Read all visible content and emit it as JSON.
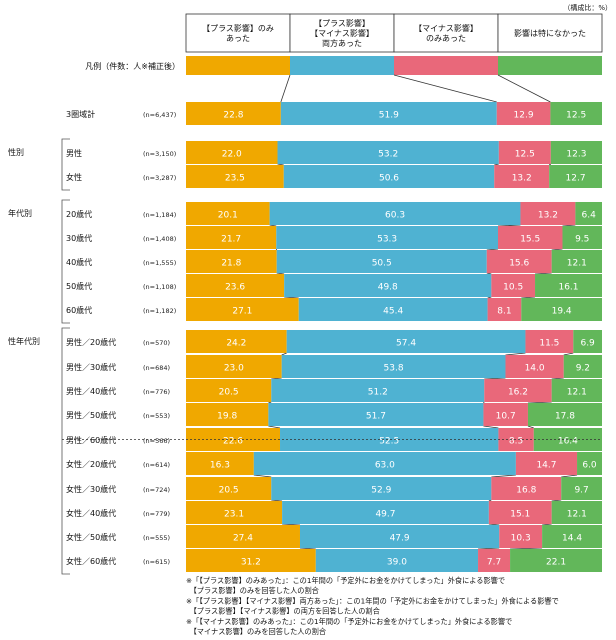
{
  "chart_data": {
    "type": "bar",
    "stacked": true,
    "unit_label": "（構成比：%）",
    "legend_label": "凡例（件数：人※補正後）",
    "series": [
      {
        "name": "【プラス影響】のみあった",
        "header_lines": [
          "【プラス影響】のみ",
          "あった"
        ],
        "color": "#f0a800"
      },
      {
        "name": "【プラス影響】【マイナス影響】両方あった",
        "header_lines": [
          "【プラス影響】",
          "【マイナス影響】",
          "両方あった"
        ],
        "color": "#4fb2d2"
      },
      {
        "name": "【マイナス影響】のみあった",
        "header_lines": [
          "【マイナス影響】",
          "のみあった"
        ],
        "color": "#e9687a"
      },
      {
        "name": "影響は特になかった",
        "header_lines": [
          "影響は特になかった"
        ],
        "color": "#62b75a"
      }
    ],
    "rows": [
      {
        "group": "",
        "label": "3圏域計",
        "n": "(n=6,437)",
        "values": [
          22.8,
          51.9,
          12.9,
          12.5
        ]
      },
      {
        "group": "性別",
        "label": "男性",
        "n": "(n=3,150)",
        "values": [
          22.0,
          53.2,
          12.5,
          12.3
        ]
      },
      {
        "group": "",
        "label": "女性",
        "n": "(n=3,287)",
        "values": [
          23.5,
          50.6,
          13.2,
          12.7
        ]
      },
      {
        "group": "年代別",
        "label": "20歳代",
        "n": "(n=1,184)",
        "values": [
          20.1,
          60.3,
          13.2,
          6.4
        ]
      },
      {
        "group": "",
        "label": "30歳代",
        "n": "(n=1,408)",
        "values": [
          21.7,
          53.3,
          15.5,
          9.5
        ]
      },
      {
        "group": "",
        "label": "40歳代",
        "n": "(n=1,555)",
        "values": [
          21.8,
          50.5,
          15.6,
          12.1
        ]
      },
      {
        "group": "",
        "label": "50歳代",
        "n": "(n=1,108)",
        "values": [
          23.6,
          49.8,
          10.5,
          16.1
        ]
      },
      {
        "group": "",
        "label": "60歳代",
        "n": "(n=1,182)",
        "values": [
          27.1,
          45.4,
          8.1,
          19.4
        ]
      },
      {
        "group": "性年代別",
        "label": "男性／20歳代",
        "n": "(n=570)",
        "values": [
          24.2,
          57.4,
          11.5,
          6.9
        ]
      },
      {
        "group": "",
        "label": "男性／30歳代",
        "n": "(n=684)",
        "values": [
          23.0,
          53.8,
          14.0,
          9.2
        ]
      },
      {
        "group": "",
        "label": "男性／40歳代",
        "n": "(n=776)",
        "values": [
          20.5,
          51.2,
          16.2,
          12.1
        ]
      },
      {
        "group": "",
        "label": "男性／50歳代",
        "n": "(n=553)",
        "values": [
          19.8,
          51.7,
          10.7,
          17.8
        ]
      },
      {
        "group": "",
        "label": "男性／60歳代",
        "n": "(n=566)",
        "values": [
          22.6,
          52.5,
          8.5,
          16.4
        ]
      },
      {
        "group": "",
        "label": "女性／20歳代",
        "n": "(n=614)",
        "values": [
          16.3,
          63.0,
          14.7,
          6.0
        ]
      },
      {
        "group": "",
        "label": "女性／30歳代",
        "n": "(n=724)",
        "values": [
          20.5,
          52.9,
          16.8,
          9.7
        ]
      },
      {
        "group": "",
        "label": "女性／40歳代",
        "n": "(n=779)",
        "values": [
          23.1,
          49.7,
          15.1,
          12.1
        ]
      },
      {
        "group": "",
        "label": "女性／50歳代",
        "n": "(n=555)",
        "values": [
          27.4,
          47.9,
          10.3,
          14.4
        ]
      },
      {
        "group": "",
        "label": "女性／60歳代",
        "n": "(n=615)",
        "values": [
          31.2,
          39.0,
          7.7,
          22.1
        ]
      }
    ],
    "footnotes": [
      "※「【プラス影響】のみあった」：この1年間の「予定外にお金をかけてしまった」外食による影響で",
      "　【プラス影響】のみを回答した人の割合",
      "※「【プラス影響】【マイナス影響】両方あった」：この1年間の「予定外にお金をかけてしまった」外食による影響で",
      "　【プラス影響】【マイナス影響】の両方を回答した人の割合",
      "※「【マイナス影響】のみあった」：この1年間の「予定外にお金をかけてしまった」外食による影響で",
      "　【マイナス影響】のみを回答した人の割合"
    ]
  }
}
